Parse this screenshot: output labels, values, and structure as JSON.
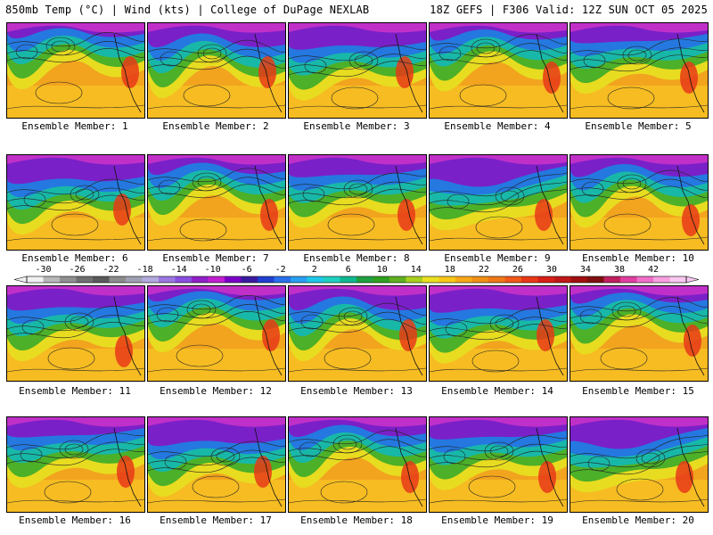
{
  "header": {
    "left": "850mb Temp (°C) | Wind (kts) | College of DuPage NEXLAB",
    "right": "18Z GEFS | F306 Valid: 12Z SUN OCT 05 2025"
  },
  "colorbar": {
    "labels": [
      "-30",
      "-26",
      "-22",
      "-18",
      "-14",
      "-10",
      "-6",
      "-2",
      "2",
      "6",
      "10",
      "14",
      "18",
      "22",
      "26",
      "30",
      "34",
      "38",
      "42"
    ],
    "colors": [
      "#f0f0f0",
      "#b8b8b8",
      "#909090",
      "#707070",
      "#5a5a5a",
      "#8c8c8c",
      "#a0a0b4",
      "#b4aade",
      "#9c78e0",
      "#8a4ee0",
      "#9020c8",
      "#c020d0",
      "#7a00c8",
      "#3a1ca0",
      "#2040d0",
      "#2a70ea",
      "#2aa0f0",
      "#20c8e8",
      "#20d0c0",
      "#10b890",
      "#20a040",
      "#30a020",
      "#60b020",
      "#a8d020",
      "#e8e020",
      "#f8c818",
      "#f8a818",
      "#f09018",
      "#f07818",
      "#f05818",
      "#e83818",
      "#d82018",
      "#c01818",
      "#a01010",
      "#801010",
      "#c02060",
      "#e040a0",
      "#f070c8",
      "#f8a0e0",
      "#f8c8f0"
    ]
  },
  "members": [
    {
      "label": "Ensemble Member: 1"
    },
    {
      "label": "Ensemble Member: 2"
    },
    {
      "label": "Ensemble Member: 3"
    },
    {
      "label": "Ensemble Member: 4"
    },
    {
      "label": "Ensemble Member: 5"
    },
    {
      "label": "Ensemble Member: 6"
    },
    {
      "label": "Ensemble Member: 7"
    },
    {
      "label": "Ensemble Member: 8"
    },
    {
      "label": "Ensemble Member: 9"
    },
    {
      "label": "Ensemble Member: 10"
    },
    {
      "label": "Ensemble Member: 11"
    },
    {
      "label": "Ensemble Member: 12"
    },
    {
      "label": "Ensemble Member: 13"
    },
    {
      "label": "Ensemble Member: 14"
    },
    {
      "label": "Ensemble Member: 15"
    },
    {
      "label": "Ensemble Member: 16"
    },
    {
      "label": "Ensemble Member: 17"
    },
    {
      "label": "Ensemble Member: 18"
    },
    {
      "label": "Ensemble Member: 19"
    },
    {
      "label": "Ensemble Member: 20"
    }
  ]
}
